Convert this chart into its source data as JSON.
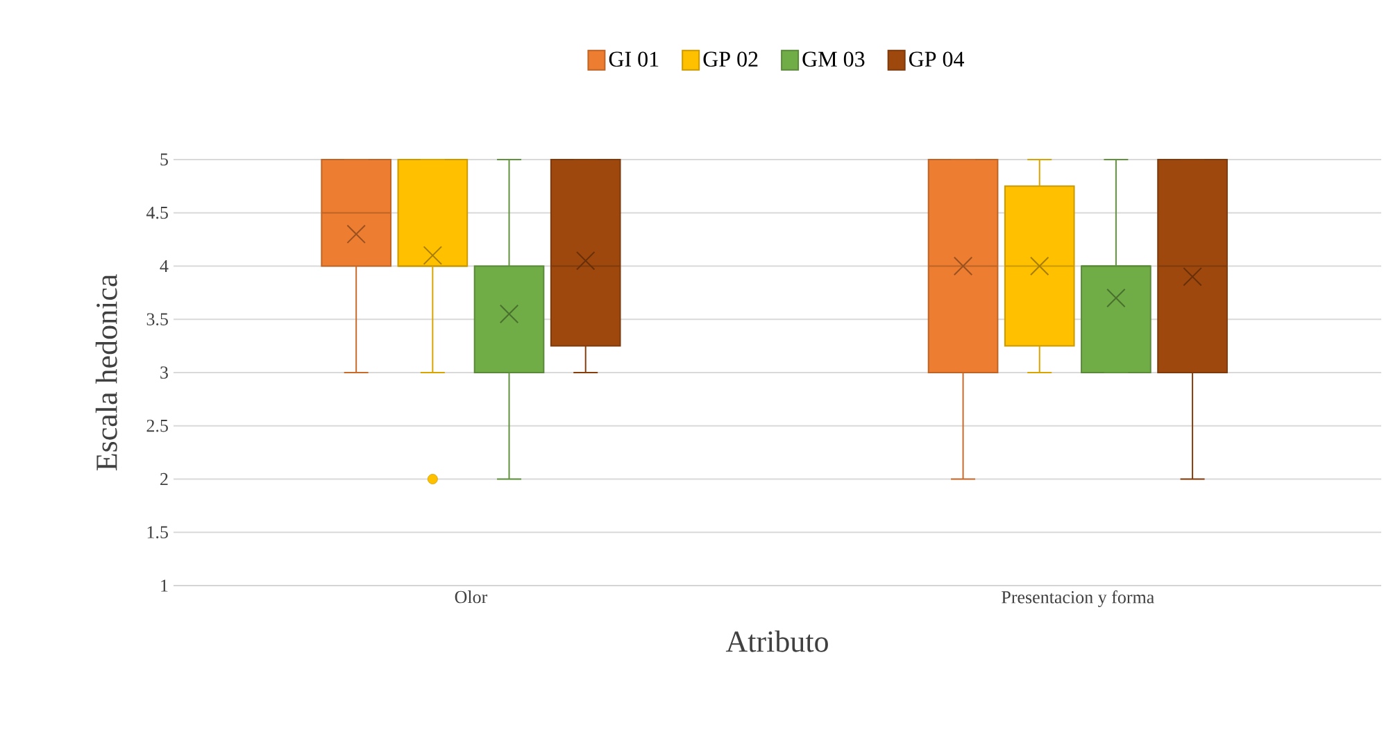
{
  "chart_data": {
    "type": "box",
    "xlabel": "Atributo",
    "ylabel": "Escala hedonica",
    "categories": [
      "Olor",
      "Presentacion y forma"
    ],
    "ylim": [
      1,
      5
    ],
    "yticks": [
      1,
      1.5,
      2,
      2.5,
      3,
      3.5,
      4,
      4.5,
      5
    ],
    "grid": "y",
    "legend": "top",
    "series": [
      {
        "name": "GI 01",
        "color": "#ed7d31",
        "boxes": [
          {
            "low": 3,
            "q1": 4,
            "median": 4.5,
            "q3": 5,
            "high": 5,
            "mean": 4.3
          },
          {
            "low": 2,
            "q1": 3,
            "median": 4,
            "q3": 5,
            "high": 5,
            "mean": 4
          }
        ]
      },
      {
        "name": "GP 02",
        "color": "#ffc000",
        "boxes": [
          {
            "low": 3,
            "q1": 4,
            "median": 4,
            "q3": 5,
            "high": 5,
            "mean": 4.1,
            "outliers": [
              2
            ]
          },
          {
            "low": 3,
            "q1": 3.25,
            "median": 4,
            "q3": 4.75,
            "high": 5,
            "mean": 4
          }
        ]
      },
      {
        "name": "GM 03",
        "color": "#70ad47",
        "boxes": [
          {
            "low": 2,
            "q1": 3,
            "median": 3,
            "q3": 4,
            "high": 5,
            "mean": 3.55
          },
          {
            "low": 3,
            "q1": 3,
            "median": 4,
            "q3": 4,
            "high": 5,
            "mean": 3.7
          }
        ]
      },
      {
        "name": "GP 04",
        "color": "#9e480e",
        "boxes": [
          {
            "low": 3,
            "q1": 3.25,
            "median": 4,
            "q3": 5,
            "high": 5,
            "mean": 4.05
          },
          {
            "low": 2,
            "q1": 3,
            "median": 4,
            "q3": 5,
            "high": 5,
            "mean": 3.9
          }
        ]
      }
    ]
  }
}
